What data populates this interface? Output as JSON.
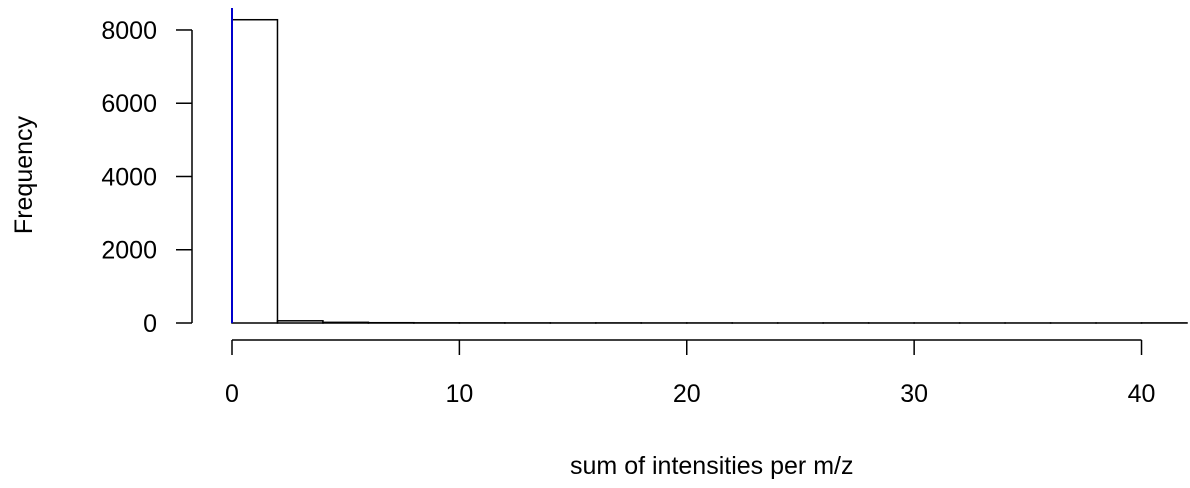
{
  "chart_data": {
    "type": "bar",
    "title": "",
    "xlabel": "sum of intensities per m/z",
    "ylabel": "Frequency",
    "xlim": [
      0,
      42
    ],
    "ylim": [
      0,
      8600
    ],
    "x_ticks": [
      0,
      10,
      20,
      30,
      40
    ],
    "x_tick_labels": [
      "0",
      "10",
      "20",
      "30",
      "40"
    ],
    "y_ticks": [
      0,
      2000,
      4000,
      6000,
      8000
    ],
    "y_tick_labels": [
      "0",
      "2000",
      "4000",
      "6000",
      "8000"
    ],
    "bin_width": 2,
    "bins": [
      {
        "start": 0,
        "end": 2,
        "count": 8280
      },
      {
        "start": 2,
        "end": 4,
        "count": 60
      },
      {
        "start": 4,
        "end": 6,
        "count": 18
      },
      {
        "start": 6,
        "end": 8,
        "count": 8
      },
      {
        "start": 8,
        "end": 10,
        "count": 5
      },
      {
        "start": 10,
        "end": 12,
        "count": 4
      },
      {
        "start": 12,
        "end": 14,
        "count": 3
      },
      {
        "start": 14,
        "end": 16,
        "count": 2
      },
      {
        "start": 16,
        "end": 18,
        "count": 3
      },
      {
        "start": 18,
        "end": 20,
        "count": 2
      },
      {
        "start": 20,
        "end": 22,
        "count": 2
      },
      {
        "start": 22,
        "end": 24,
        "count": 1
      },
      {
        "start": 24,
        "end": 26,
        "count": 1
      },
      {
        "start": 26,
        "end": 28,
        "count": 2
      },
      {
        "start": 28,
        "end": 30,
        "count": 1
      },
      {
        "start": 30,
        "end": 32,
        "count": 1
      },
      {
        "start": 32,
        "end": 34,
        "count": 1
      },
      {
        "start": 34,
        "end": 36,
        "count": 1
      },
      {
        "start": 36,
        "end": 38,
        "count": 1
      },
      {
        "start": 38,
        "end": 40,
        "count": 1
      },
      {
        "start": 40,
        "end": 42,
        "count": 3
      }
    ],
    "reference_line": {
      "x": 0,
      "color": "#0000cc"
    },
    "grid": false,
    "legend": "none"
  }
}
